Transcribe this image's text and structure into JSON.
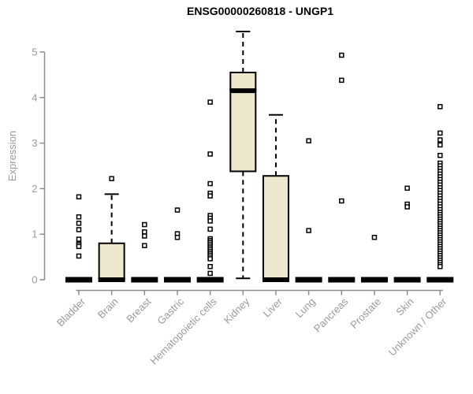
{
  "title": "ENSG00000260818 - UNGP1",
  "y_axis_label": "Expression",
  "chart_data": {
    "type": "boxplot",
    "title": "ENSG00000260818 - UNGP1",
    "xlabel": "",
    "ylabel": "Expression",
    "ylim": [
      0,
      5.6
    ],
    "yticks": [
      0,
      1,
      2,
      3,
      4,
      5
    ],
    "grid": false,
    "legend": "none",
    "colors": {
      "box_fill": "#EDE7CE",
      "box_stroke": "#000000",
      "axis": "#8C8C8C",
      "tick_label": "#9A9A9A",
      "title": "#000000",
      "background": "#FFFFFF"
    },
    "categories": [
      "Bladder",
      "Brain",
      "Breast",
      "Gastric",
      "Hematopoietic cells",
      "Kidney",
      "Liver",
      "Lung",
      "Pancreas",
      "Prostate",
      "Skin",
      "Unknown / Other"
    ],
    "series": [
      {
        "category": "Bladder",
        "q1": 0,
        "median": 0,
        "q3": 0,
        "whisker_low": 0,
        "whisker_high": 0,
        "outliers": [
          1.82,
          1.38,
          1.24,
          1.1,
          0.89,
          0.8,
          0.77,
          0.73,
          0.52
        ]
      },
      {
        "category": "Brain",
        "q1": 0,
        "median": 0,
        "q3": 0.8,
        "whisker_low": 0,
        "whisker_high": 1.88,
        "outliers": [
          2.22
        ]
      },
      {
        "category": "Breast",
        "q1": 0,
        "median": 0,
        "q3": 0,
        "whisker_low": 0,
        "whisker_high": 0,
        "outliers": [
          1.21,
          1.05,
          0.96,
          0.75
        ]
      },
      {
        "category": "Gastric",
        "q1": 0,
        "median": 0,
        "q3": 0,
        "whisker_low": 0,
        "whisker_high": 0,
        "outliers": [
          1.53,
          1.01,
          0.93
        ]
      },
      {
        "category": "Hematopoietic cells",
        "q1": 0,
        "median": 0,
        "q3": 0,
        "whisker_low": 0,
        "whisker_high": 0,
        "outliers": [
          3.9,
          2.76,
          2.11,
          1.9,
          1.84,
          1.41,
          1.35,
          1.29,
          1.11,
          0.9,
          0.86,
          0.82,
          0.78,
          0.74,
          0.7,
          0.66,
          0.62,
          0.58,
          0.54,
          0.5,
          0.46,
          0.29,
          0.14
        ]
      },
      {
        "category": "Kidney",
        "q1": 2.38,
        "median": 4.15,
        "q3": 4.55,
        "whisker_low": 0.03,
        "whisker_high": 5.45,
        "outliers": []
      },
      {
        "category": "Liver",
        "q1": 0,
        "median": 0,
        "q3": 2.28,
        "whisker_low": 0,
        "whisker_high": 3.62,
        "outliers": []
      },
      {
        "category": "Lung",
        "q1": 0,
        "median": 0,
        "q3": 0,
        "whisker_low": 0,
        "whisker_high": 0,
        "outliers": [
          3.05,
          1.08
        ]
      },
      {
        "category": "Pancreas",
        "q1": 0,
        "median": 0,
        "q3": 0,
        "whisker_low": 0,
        "whisker_high": 0,
        "outliers": [
          4.93,
          4.38,
          1.73
        ]
      },
      {
        "category": "Prostate",
        "q1": 0,
        "median": 0,
        "q3": 0,
        "whisker_low": 0,
        "whisker_high": 0,
        "outliers": [
          0.93
        ]
      },
      {
        "category": "Skin",
        "q1": 0,
        "median": 0,
        "q3": 0,
        "whisker_low": 0,
        "whisker_high": 0,
        "outliers": [
          2.01,
          1.66,
          1.6
        ]
      },
      {
        "category": "Unknown / Other",
        "q1": 0,
        "median": 0,
        "q3": 0,
        "whisker_low": 0,
        "whisker_high": 0,
        "outliers": [
          3.8,
          3.22,
          3.07,
          2.96,
          2.73,
          2.56,
          2.5,
          2.44,
          2.38,
          2.32,
          2.26,
          2.2,
          2.14,
          2.08,
          2.02,
          1.96,
          1.9,
          1.84,
          1.78,
          1.72,
          1.66,
          1.6,
          1.54,
          1.48,
          1.43,
          1.38,
          1.33,
          1.28,
          1.23,
          1.18,
          1.13,
          1.08,
          1.03,
          0.98,
          0.93,
          0.88,
          0.83,
          0.78,
          0.73,
          0.68,
          0.63,
          0.58,
          0.53,
          0.48,
          0.43,
          0.38,
          0.33,
          0.29
        ]
      }
    ]
  }
}
